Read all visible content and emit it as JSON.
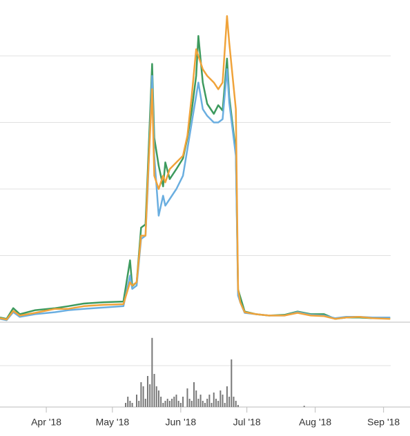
{
  "chart_data": [
    {
      "type": "line",
      "x": [
        -21,
        -18,
        -15,
        -12,
        -5,
        4,
        10,
        17,
        26,
        35,
        38,
        39,
        41,
        43,
        45,
        46,
        48,
        49,
        51,
        53,
        54,
        56,
        59,
        62,
        64,
        66,
        68,
        69,
        71,
        73,
        76,
        78,
        80,
        82,
        83,
        86,
        87,
        88,
        90,
        95,
        101,
        108,
        114,
        120,
        126,
        131,
        136,
        142,
        148,
        156
      ],
      "xlim": [
        -21,
        165
      ],
      "ylim": [
        0,
        4.84
      ],
      "yticks": [
        0,
        1,
        2,
        3,
        4
      ],
      "grid": true,
      "series": [
        {
          "color": "#3d9a5e",
          "values": [
            0.07,
            0.05,
            0.21,
            0.12,
            0.18,
            0.21,
            0.24,
            0.28,
            0.3,
            0.31,
            0.93,
            0.54,
            0.6,
            1.42,
            1.47,
            2.25,
            3.88,
            2.77,
            2.35,
            2.04,
            2.4,
            2.15,
            2.3,
            2.46,
            2.77,
            3.18,
            3.7,
            4.3,
            3.6,
            3.28,
            3.13,
            3.26,
            3.18,
            3.96,
            3.39,
            2.56,
            0.49,
            0.38,
            0.16,
            0.12,
            0.1,
            0.11,
            0.16,
            0.12,
            0.12,
            0.05,
            0.07,
            0.07,
            0.06,
            0.06
          ]
        },
        {
          "color": "#6aaee0",
          "values": [
            0.05,
            0.03,
            0.15,
            0.08,
            0.12,
            0.15,
            0.18,
            0.2,
            0.22,
            0.24,
            0.7,
            0.5,
            0.55,
            1.25,
            1.3,
            2.0,
            3.7,
            2.5,
            1.6,
            1.9,
            1.75,
            1.85,
            2.0,
            2.2,
            2.6,
            3.0,
            3.4,
            3.6,
            3.2,
            3.1,
            3.0,
            3.0,
            3.05,
            3.8,
            3.3,
            2.5,
            0.4,
            0.3,
            0.14,
            0.12,
            0.1,
            0.1,
            0.15,
            0.11,
            0.1,
            0.06,
            0.08,
            0.08,
            0.07,
            0.07
          ]
        },
        {
          "color": "#f0a33a",
          "values": [
            0.06,
            0.04,
            0.17,
            0.1,
            0.14,
            0.2,
            0.2,
            0.24,
            0.26,
            0.27,
            0.6,
            0.55,
            0.6,
            1.3,
            1.3,
            2.1,
            3.5,
            2.2,
            2.0,
            2.2,
            2.1,
            2.3,
            2.4,
            2.5,
            2.8,
            3.4,
            4.1,
            4.0,
            3.8,
            3.7,
            3.6,
            3.5,
            3.6,
            4.6,
            4.2,
            3.2,
            0.5,
            0.3,
            0.15,
            0.12,
            0.1,
            0.1,
            0.14,
            0.1,
            0.09,
            0.05,
            0.07,
            0.08,
            0.06,
            0.05
          ]
        }
      ]
    },
    {
      "type": "bar",
      "x": [
        36,
        37,
        38,
        39,
        41,
        42,
        43,
        44,
        45,
        46,
        47,
        48,
        49,
        50,
        51,
        52,
        53,
        54,
        55,
        56,
        57,
        58,
        59,
        60,
        61,
        62,
        64,
        65,
        66,
        67,
        68,
        69,
        70,
        71,
        72,
        73,
        74,
        75,
        76,
        77,
        78,
        79,
        80,
        81,
        82,
        83,
        84,
        85,
        86,
        87,
        117
      ],
      "values": [
        0.1,
        0.25,
        0.15,
        0.1,
        0.3,
        0.15,
        0.6,
        0.5,
        0.2,
        0.75,
        0.55,
        1.67,
        0.8,
        0.5,
        0.4,
        0.25,
        0.1,
        0.15,
        0.2,
        0.15,
        0.2,
        0.25,
        0.3,
        0.15,
        0.1,
        0.25,
        0.45,
        0.2,
        0.15,
        0.6,
        0.4,
        0.2,
        0.3,
        0.15,
        0.1,
        0.2,
        0.3,
        0.1,
        0.35,
        0.2,
        0.15,
        0.4,
        0.3,
        0.1,
        0.5,
        0.25,
        1.15,
        0.25,
        0.15,
        0.05,
        0.03
      ],
      "color": "#777777",
      "xlim": [
        -21,
        165
      ],
      "ylim": [
        0,
        2
      ],
      "yticks": [
        0,
        1
      ],
      "grid": true,
      "xticks": [
        {
          "value": 0,
          "label": "Apr '18"
        },
        {
          "value": 30,
          "label": "May '18"
        },
        {
          "value": 61,
          "label": "Jun '18"
        },
        {
          "value": 91,
          "label": "Jul '18"
        },
        {
          "value": 122,
          "label": "Aug '18"
        },
        {
          "value": 153,
          "label": "Sep '18"
        }
      ]
    }
  ]
}
